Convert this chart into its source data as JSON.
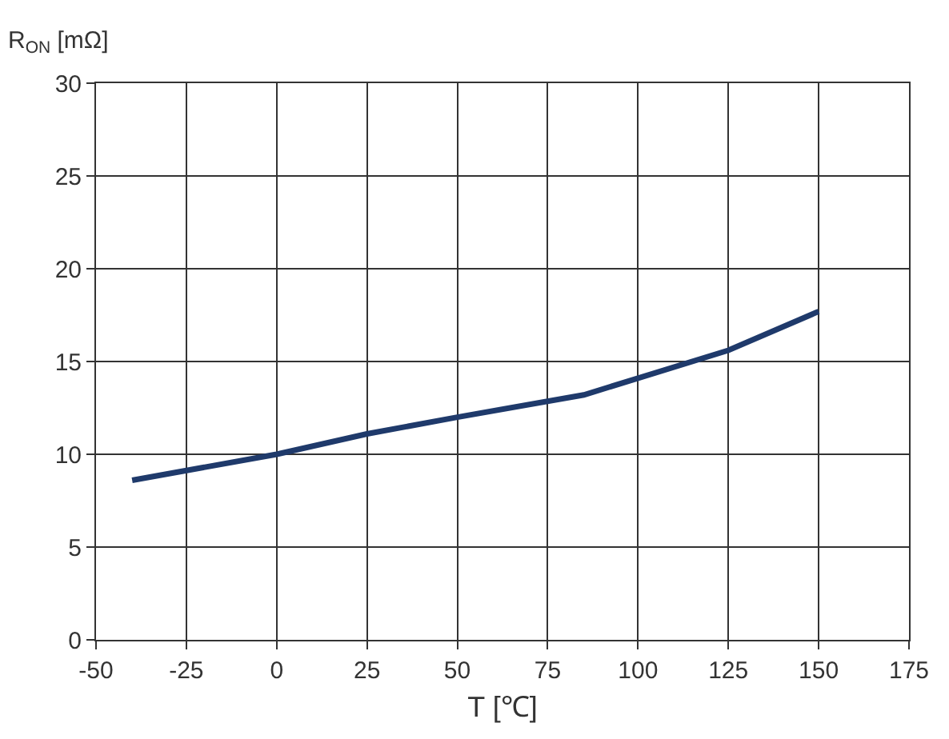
{
  "chart_data": {
    "type": "line",
    "xlabel": "T [℃]",
    "ylabel": "R$_{ON}$ [mΩ]",
    "x": [
      -40,
      0,
      25,
      50,
      85,
      100,
      125,
      150
    ],
    "series": [
      {
        "color": "#1f3a6b",
        "values": [
          8.6,
          10.0,
          11.1,
          12.0,
          13.2,
          14.1,
          15.6,
          17.7
        ]
      }
    ],
    "xlim": [
      -50,
      175
    ],
    "xticks": [
      -50,
      -25,
      0,
      25,
      50,
      75,
      100,
      125,
      150,
      175
    ],
    "ylim": [
      0,
      30
    ],
    "yticks": [
      0,
      5,
      10,
      15,
      20,
      25,
      30
    ],
    "grid": true,
    "legend": false,
    "marker": "none",
    "line_style": "solid"
  }
}
